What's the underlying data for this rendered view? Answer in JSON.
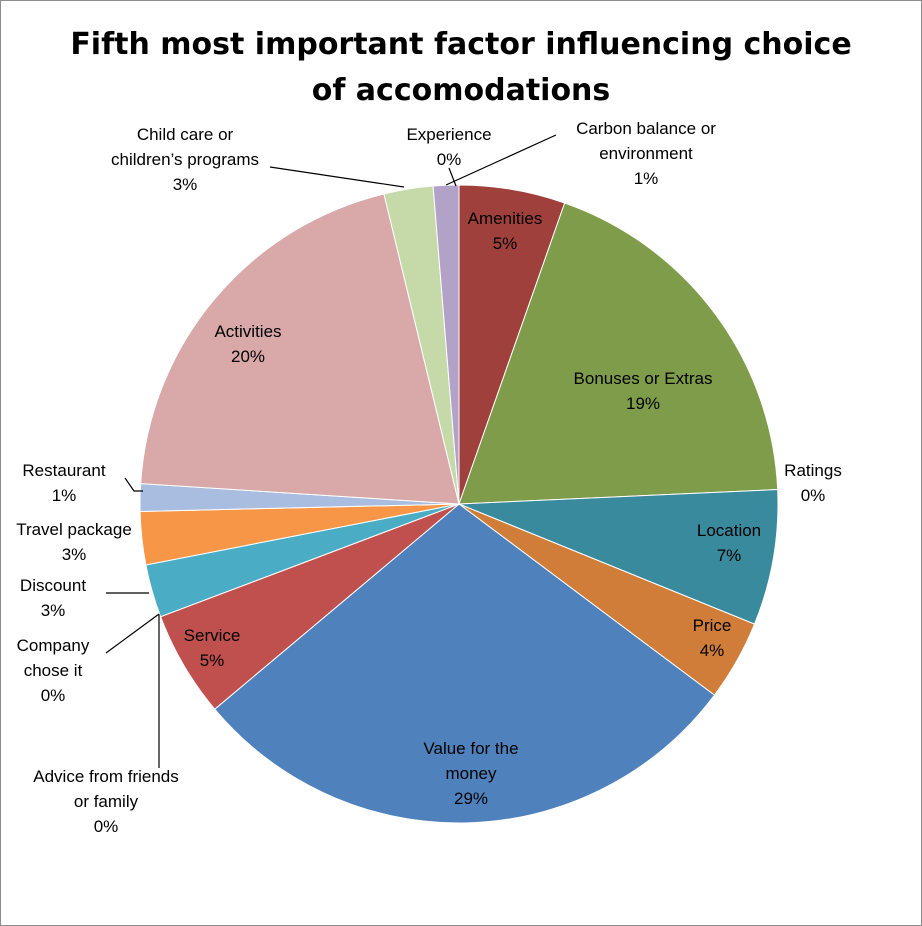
{
  "chart_data": {
    "type": "pie",
    "title": "Fifth most important factor influencing choice of accomodations",
    "title_lines": [
      "Fifth most important factor influencing choice",
      "of accomodations"
    ],
    "slices": [
      {
        "name": "Amenities",
        "label_lines": [
          "Amenities"
        ],
        "display": "5%",
        "value": 5.4,
        "color": "#a0403c"
      },
      {
        "name": "Bonuses or Extras",
        "label_lines": [
          "Bonuses or Extras"
        ],
        "display": "19%",
        "value": 19.0,
        "color": "#7f9c4a"
      },
      {
        "name": "Ratings",
        "label_lines": [
          "Ratings"
        ],
        "display": "0%",
        "value": 0.0,
        "color": "#3a8a9e"
      },
      {
        "name": "Location",
        "label_lines": [
          "Location"
        ],
        "display": "7%",
        "value": 6.9,
        "color": "#3a8a9e"
      },
      {
        "name": "Price",
        "label_lines": [
          "Price"
        ],
        "display": "4%",
        "value": 4.1,
        "color": "#d07d3a"
      },
      {
        "name": "Value for the money",
        "label_lines": [
          "Value for the",
          "money"
        ],
        "display": "29%",
        "value": 28.8,
        "color": "#4f81bd"
      },
      {
        "name": "Service",
        "label_lines": [
          "Service"
        ],
        "display": "5%",
        "value": 5.4,
        "color": "#c0504d"
      },
      {
        "name": "Advice from friends or family",
        "label_lines": [
          "Advice from friends",
          "or family"
        ],
        "display": "0%",
        "value": 0.0,
        "color": "#9bbb59"
      },
      {
        "name": "Company chose it",
        "label_lines": [
          "Company",
          "chose it"
        ],
        "display": "0%",
        "value": 0.0,
        "color": "#8064a2"
      },
      {
        "name": "Discount",
        "label_lines": [
          "Discount"
        ],
        "display": "3%",
        "value": 2.7,
        "color": "#4bacc6"
      },
      {
        "name": "Travel package",
        "label_lines": [
          "Travel package"
        ],
        "display": "3%",
        "value": 2.7,
        "color": "#f79646"
      },
      {
        "name": "Restaurant",
        "label_lines": [
          "Restaurant"
        ],
        "display": "1%",
        "value": 1.4,
        "color": "#a9bde0"
      },
      {
        "name": "Activities",
        "label_lines": [
          "Activities"
        ],
        "display": "20%",
        "value": 20.3,
        "color": "#d9a8a8"
      },
      {
        "name": "Child care or children’s programs",
        "label_lines": [
          "Child care or",
          "children’s programs"
        ],
        "display": "3%",
        "value": 2.5,
        "color": "#c6d9a9"
      },
      {
        "name": "Experience",
        "label_lines": [
          "Experience"
        ],
        "display": "0%",
        "value": 0.0,
        "color": "#c0b4d2"
      },
      {
        "name": "Carbon balance or environment",
        "label_lines": [
          "Carbon balance or",
          "environment"
        ],
        "display": "1%",
        "value": 1.3,
        "color": "#b3a2c7"
      }
    ]
  }
}
